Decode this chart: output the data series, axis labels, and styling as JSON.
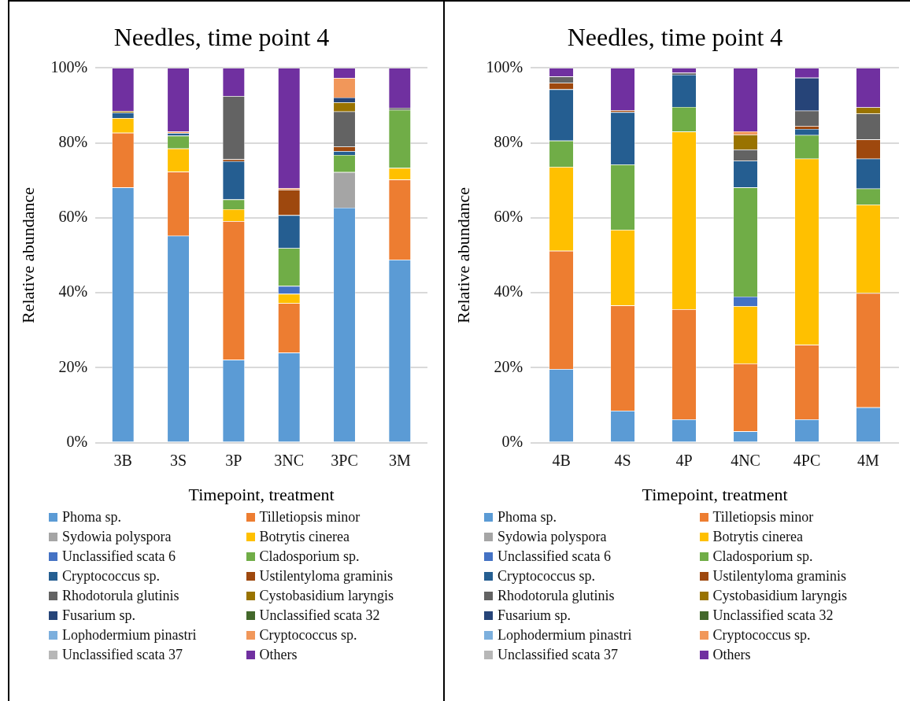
{
  "chart_data": [
    {
      "type": "bar",
      "title": "Needles, time point 4",
      "xlabel": "Timepoint, treatment",
      "ylabel": "Relative abundance",
      "categories": [
        "3B",
        "3S",
        "3P",
        "3NC",
        "3PC",
        "3M"
      ],
      "stacked": true,
      "grid": "y",
      "legend": "bottom",
      "ylim": [
        0,
        100
      ],
      "yticks": [
        {
          "value": 0,
          "label": "0%"
        },
        {
          "value": 20,
          "label": "20%"
        },
        {
          "value": 40,
          "label": "40%"
        },
        {
          "value": 60,
          "label": "60%"
        },
        {
          "value": 80,
          "label": "80%"
        },
        {
          "value": 100,
          "label": "100%"
        }
      ],
      "series": [
        {
          "name": "Phoma sp.",
          "color": "#5b9bd5",
          "values": [
            68.1,
            55.2,
            22.1,
            24.0,
            62.7,
            48.8
          ]
        },
        {
          "name": "Tilletiopsis minor",
          "color": "#ed7d31",
          "values": [
            14.6,
            17.1,
            37.0,
            13.2,
            0,
            21.4
          ]
        },
        {
          "name": "Sydowia polyspora",
          "color": "#a5a5a5",
          "values": [
            0,
            0,
            0,
            0,
            9.5,
            0
          ]
        },
        {
          "name": "Botrytis cinerea",
          "color": "#ffc000",
          "values": [
            3.9,
            6.2,
            3.2,
            2.5,
            0,
            3.1
          ]
        },
        {
          "name": "Unclassified scata 6",
          "color": "#4472c4",
          "values": [
            0,
            0,
            0,
            2.1,
            0,
            0
          ]
        },
        {
          "name": "Cladosporium sp.",
          "color": "#70ad47",
          "values": [
            0,
            3.4,
            2.6,
            10.1,
            4.6,
            15.5
          ]
        },
        {
          "name": "Cryptococcus sp.",
          "color": "#255e91",
          "values": [
            1.5,
            0.7,
            10.2,
            8.8,
            1.0,
            0
          ]
        },
        {
          "name": "Ustilentyloma graminis",
          "color": "#9e480e",
          "values": [
            0,
            0,
            0.5,
            6.8,
            1.2,
            0
          ]
        },
        {
          "name": "Rhodotorula glutinis",
          "color": "#636363",
          "values": [
            null,
            0,
            16.9,
            0,
            9.4,
            0.6
          ]
        },
        {
          "name": "Cystobasidium laryngis",
          "color": "#997300",
          "values": [
            0.4,
            0,
            0,
            0,
            2.4,
            0
          ]
        },
        {
          "name": "Fusarium sp.",
          "color": "#264478",
          "values": [
            0,
            0,
            0,
            0,
            1.3,
            0
          ]
        },
        {
          "name": "Unclassified scata 32",
          "color": "#43682b",
          "values": [
            0,
            0,
            0,
            0,
            0,
            0
          ]
        },
        {
          "name": "Lophodermium pinastri",
          "color": "#7cafdd",
          "values": [
            0,
            0,
            0,
            0,
            0,
            0
          ]
        },
        {
          "name": "Cryptococcus sp.",
          "color": "#f1975a",
          "values": [
            0,
            0.4,
            0,
            0.4,
            5.2,
            0
          ]
        },
        {
          "name": "Unclassified scata 37",
          "color": "#b7b7b7",
          "values": [
            0,
            0,
            0,
            0,
            0,
            0
          ]
        },
        {
          "name": "Others",
          "color": "#7030a0",
          "values": [
            11.5,
            17.0,
            7.5,
            32.1,
            2.7,
            10.6
          ]
        }
      ]
    },
    {
      "type": "bar",
      "title": "Needles, time point 4",
      "xlabel": "Timepoint, treatment",
      "ylabel": "Relative abundance",
      "categories": [
        "4B",
        "4S",
        "4P",
        "4NC",
        "4PC",
        "4M"
      ],
      "stacked": true,
      "grid": "y",
      "legend": "bottom",
      "ylim": [
        0,
        100
      ],
      "yticks": [
        {
          "value": 0,
          "label": "0%"
        },
        {
          "value": 20,
          "label": "20%"
        },
        {
          "value": 40,
          "label": "40%"
        },
        {
          "value": 60,
          "label": "60%"
        },
        {
          "value": 80,
          "label": "80%"
        },
        {
          "value": 100,
          "label": "100%"
        }
      ],
      "series": [
        {
          "name": "Phoma sp.",
          "color": "#5b9bd5",
          "values": [
            19.6,
            8.5,
            6.2,
            3.0,
            6.2,
            9.4
          ]
        },
        {
          "name": "Tilletiopsis minor",
          "color": "#ed7d31",
          "values": [
            31.6,
            28.1,
            29.4,
            18.1,
            19.9,
            30.5
          ]
        },
        {
          "name": "Sydowia polyspora",
          "color": "#a5a5a5",
          "values": [
            0,
            0,
            0,
            0,
            0,
            0
          ]
        },
        {
          "name": "Botrytis cinerea",
          "color": "#ffc000",
          "values": [
            22.4,
            20.2,
            47.4,
            15.3,
            49.7,
            23.6
          ]
        },
        {
          "name": "Unclassified scata 6",
          "color": "#4472c4",
          "values": [
            0,
            0,
            0,
            2.6,
            0,
            0
          ]
        },
        {
          "name": "Cladosporium sp.",
          "color": "#70ad47",
          "values": [
            7.0,
            17.4,
            6.6,
            29.1,
            6.3,
            4.3
          ]
        },
        {
          "name": "Cryptococcus sp.",
          "color": "#255e91",
          "values": [
            13.7,
            14.0,
            8.6,
            7.1,
            1.6,
            8.0
          ]
        },
        {
          "name": "Ustilentyloma graminis",
          "color": "#9e480e",
          "values": [
            1.7,
            0.5,
            0,
            0,
            0.8,
            5.1
          ]
        },
        {
          "name": "Rhodotorula glutinis",
          "color": "#636363",
          "values": [
            1.7,
            0,
            0.5,
            3.0,
            4.1,
            6.9
          ]
        },
        {
          "name": "Cystobasidium laryngis",
          "color": "#997300",
          "values": [
            0,
            0,
            0,
            4.0,
            0,
            1.7
          ]
        },
        {
          "name": "Fusarium sp.",
          "color": "#264478",
          "values": [
            0,
            0,
            0,
            0,
            8.8,
            0
          ]
        },
        {
          "name": "Unclassified scata 32",
          "color": "#43682b",
          "values": [
            0,
            0,
            0,
            0,
            0,
            0
          ]
        },
        {
          "name": "Lophodermium pinastri",
          "color": "#7cafdd",
          "values": [
            0,
            0,
            0,
            0,
            0,
            0
          ]
        },
        {
          "name": "Cryptococcus sp.",
          "color": "#f1975a",
          "values": [
            0,
            0,
            0,
            0.9,
            0,
            0
          ]
        },
        {
          "name": "Unclassified scata 37",
          "color": "#b7b7b7",
          "values": [
            0,
            0,
            0,
            0,
            0,
            0
          ]
        },
        {
          "name": "Others",
          "color": "#7030a0",
          "values": [
            2.3,
            11.3,
            1.3,
            16.9,
            2.6,
            10.5
          ]
        }
      ]
    }
  ]
}
